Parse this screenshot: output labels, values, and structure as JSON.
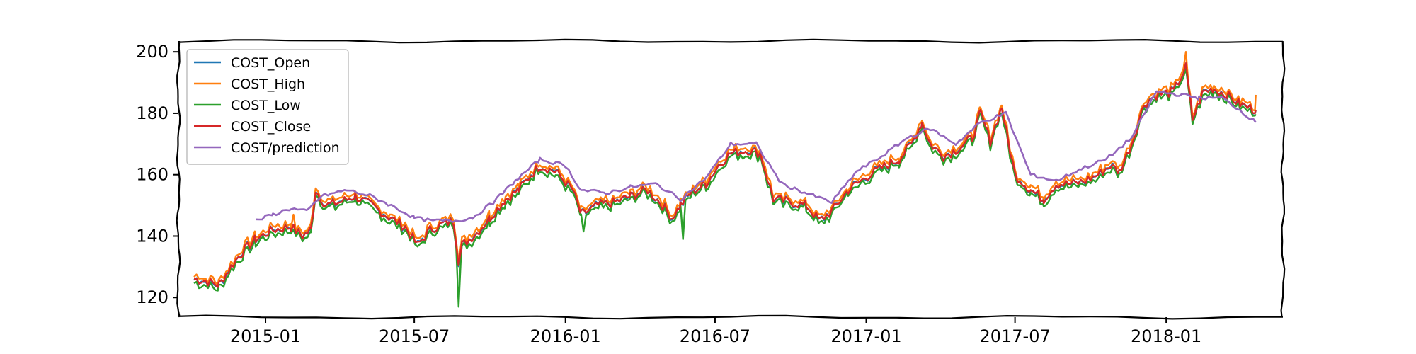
{
  "chart_data": {
    "type": "line",
    "title": "",
    "xlabel": "",
    "ylabel": "",
    "xlim": [
      "2014-09-17",
      "2018-05-23"
    ],
    "ylim": [
      113.6,
      203.5
    ],
    "grid": false,
    "legend_position": "top-left",
    "x_ticks": [
      "2015-01",
      "2015-07",
      "2016-01",
      "2016-07",
      "2017-01",
      "2017-07",
      "2018-01"
    ],
    "y_ticks": [
      120,
      140,
      160,
      180,
      200
    ],
    "series": [
      {
        "name": "COST_Open",
        "color": "#1f77b4"
      },
      {
        "name": "COST_High",
        "color": "#ff7f0e"
      },
      {
        "name": "COST_Low",
        "color": "#2ca02c"
      },
      {
        "name": "COST_Close",
        "color": "#d62728"
      },
      {
        "name": "COST/prediction",
        "color": "#9467bd"
      }
    ],
    "close_anchors": [
      [
        "2014-10-06",
        126
      ],
      [
        "2014-10-20",
        125.5
      ],
      [
        "2014-11-05",
        124
      ],
      [
        "2014-11-20",
        130
      ],
      [
        "2014-12-01",
        134
      ],
      [
        "2014-12-20",
        139
      ],
      [
        "2015-01-10",
        142
      ],
      [
        "2015-02-01",
        143
      ],
      [
        "2015-02-15",
        140
      ],
      [
        "2015-02-25",
        142
      ],
      [
        "2015-03-03",
        155
      ],
      [
        "2015-03-15",
        150
      ],
      [
        "2015-04-01",
        151
      ],
      [
        "2015-04-20",
        153
      ],
      [
        "2015-05-10",
        150
      ],
      [
        "2015-06-01",
        146
      ],
      [
        "2015-06-20",
        143
      ],
      [
        "2015-07-05",
        137
      ],
      [
        "2015-07-20",
        142
      ],
      [
        "2015-08-05",
        144
      ],
      [
        "2015-08-18",
        145
      ],
      [
        "2015-08-24",
        132
      ],
      [
        "2015-08-28",
        137
      ],
      [
        "2015-09-15",
        141
      ],
      [
        "2015-10-01",
        146
      ],
      [
        "2015-10-20",
        152
      ],
      [
        "2015-11-05",
        155
      ],
      [
        "2015-11-20",
        160
      ],
      [
        "2015-12-01",
        163
      ],
      [
        "2015-12-20",
        161
      ],
      [
        "2016-01-10",
        155
      ],
      [
        "2016-01-20",
        147
      ],
      [
        "2016-02-10",
        150
      ],
      [
        "2016-03-01",
        151
      ],
      [
        "2016-03-20",
        153
      ],
      [
        "2016-04-10",
        155
      ],
      [
        "2016-04-25",
        151
      ],
      [
        "2016-05-10",
        146
      ],
      [
        "2016-05-20",
        150
      ],
      [
        "2016-06-01",
        154
      ],
      [
        "2016-06-20",
        157
      ],
      [
        "2016-07-05",
        163
      ],
      [
        "2016-07-20",
        167
      ],
      [
        "2016-08-10",
        168
      ],
      [
        "2016-08-25",
        167
      ],
      [
        "2016-09-10",
        152
      ],
      [
        "2016-10-01",
        151
      ],
      [
        "2016-10-20",
        150
      ],
      [
        "2016-11-05",
        145
      ],
      [
        "2016-11-20",
        148
      ],
      [
        "2016-12-10",
        155
      ],
      [
        "2017-01-05",
        160
      ],
      [
        "2017-01-25",
        163
      ],
      [
        "2017-02-10",
        165
      ],
      [
        "2017-02-25",
        170
      ],
      [
        "2017-03-10",
        177
      ],
      [
        "2017-03-20",
        170
      ],
      [
        "2017-04-05",
        166
      ],
      [
        "2017-04-20",
        168
      ],
      [
        "2017-05-10",
        172
      ],
      [
        "2017-05-20",
        180
      ],
      [
        "2017-06-01",
        171
      ],
      [
        "2017-06-15",
        182
      ],
      [
        "2017-06-22",
        172
      ],
      [
        "2017-07-01",
        160
      ],
      [
        "2017-07-20",
        155
      ],
      [
        "2017-08-05",
        152
      ],
      [
        "2017-08-20",
        157
      ],
      [
        "2017-09-10",
        157
      ],
      [
        "2017-09-25",
        158
      ],
      [
        "2017-10-10",
        160
      ],
      [
        "2017-10-25",
        163
      ],
      [
        "2017-11-05",
        161
      ],
      [
        "2017-11-20",
        170
      ],
      [
        "2017-12-05",
        183
      ],
      [
        "2017-12-20",
        186
      ],
      [
        "2018-01-10",
        187
      ],
      [
        "2018-01-25",
        195
      ],
      [
        "2018-02-02",
        178
      ],
      [
        "2018-02-15",
        187
      ],
      [
        "2018-02-28",
        188
      ],
      [
        "2018-03-15",
        186
      ],
      [
        "2018-04-01",
        183
      ],
      [
        "2018-04-20",
        181
      ]
    ],
    "prediction_anchors": [
      [
        "2014-12-20",
        145
      ],
      [
        "2015-01-10",
        147
      ],
      [
        "2015-02-01",
        149
      ],
      [
        "2015-02-20",
        148
      ],
      [
        "2015-03-10",
        153
      ],
      [
        "2015-04-10",
        155
      ],
      [
        "2015-05-10",
        153
      ],
      [
        "2015-06-10",
        149
      ],
      [
        "2015-07-01",
        146
      ],
      [
        "2015-07-20",
        145
      ],
      [
        "2015-08-20",
        145
      ],
      [
        "2015-09-10",
        146
      ],
      [
        "2015-10-05",
        151
      ],
      [
        "2015-11-01",
        158
      ],
      [
        "2015-12-01",
        165
      ],
      [
        "2016-01-01",
        163
      ],
      [
        "2016-01-20",
        155
      ],
      [
        "2016-02-20",
        154
      ],
      [
        "2016-03-20",
        156
      ],
      [
        "2016-04-20",
        157
      ],
      [
        "2016-05-20",
        152
      ],
      [
        "2016-06-20",
        159
      ],
      [
        "2016-07-20",
        170
      ],
      [
        "2016-08-20",
        170
      ],
      [
        "2016-09-20",
        157
      ],
      [
        "2016-10-20",
        154
      ],
      [
        "2016-11-20",
        151
      ],
      [
        "2016-12-20",
        161
      ],
      [
        "2017-01-20",
        166
      ],
      [
        "2017-02-20",
        172
      ],
      [
        "2017-03-20",
        175
      ],
      [
        "2017-04-20",
        170
      ],
      [
        "2017-05-20",
        177
      ],
      [
        "2017-06-20",
        180
      ],
      [
        "2017-07-20",
        160
      ],
      [
        "2017-08-20",
        158
      ],
      [
        "2017-09-20",
        162
      ],
      [
        "2017-10-20",
        165
      ],
      [
        "2017-11-20",
        172
      ],
      [
        "2017-12-20",
        187
      ],
      [
        "2018-01-20",
        186
      ],
      [
        "2018-02-10",
        185
      ],
      [
        "2018-03-10",
        185
      ],
      [
        "2018-04-01",
        181
      ],
      [
        "2018-04-20",
        177
      ]
    ]
  }
}
